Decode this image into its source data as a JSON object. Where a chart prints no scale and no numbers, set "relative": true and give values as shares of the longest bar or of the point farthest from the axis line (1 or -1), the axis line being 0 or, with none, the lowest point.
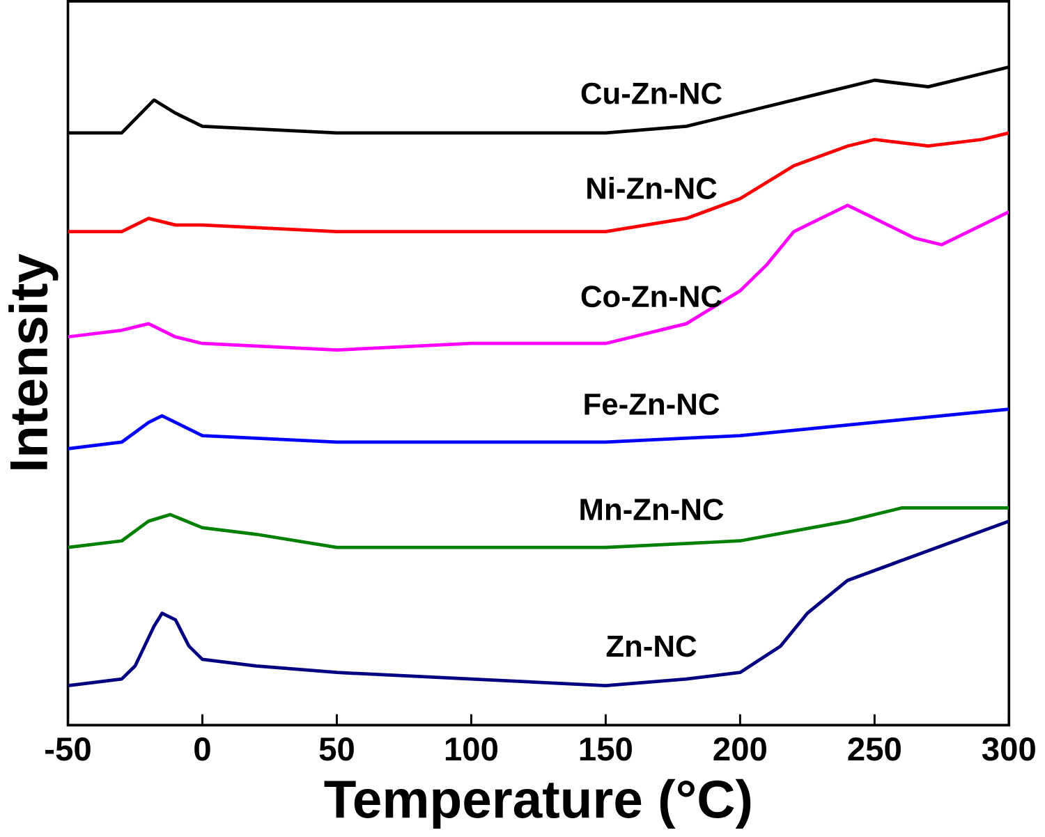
{
  "chart_data": {
    "type": "line",
    "relative": true,
    "xlabel": "Temperature (°C)",
    "ylabel": "Intensity",
    "xlim": [
      -50,
      300
    ],
    "xticks": [
      -50,
      0,
      50,
      100,
      150,
      200,
      250,
      300
    ],
    "tick_labels": "x",
    "grid": false,
    "marker": "none",
    "line_style": "solid",
    "series": [
      {
        "name": "Cu-Zn-NC",
        "color": "#000000",
        "x": [
          -50,
          -30,
          -18,
          -10,
          0,
          50,
          100,
          150,
          180,
          210,
          230,
          250,
          270,
          290,
          300
        ],
        "values": [
          0.9,
          0.9,
          0.95,
          0.93,
          0.91,
          0.9,
          0.9,
          0.9,
          0.91,
          0.94,
          0.96,
          0.98,
          0.97,
          0.99,
          1.0
        ]
      },
      {
        "name": "Ni-Zn-NC",
        "color": "#ff0000",
        "x": [
          -50,
          -30,
          -20,
          -10,
          0,
          50,
          100,
          150,
          180,
          200,
          220,
          240,
          250,
          270,
          290,
          300
        ],
        "values": [
          0.75,
          0.75,
          0.77,
          0.76,
          0.76,
          0.75,
          0.75,
          0.75,
          0.77,
          0.8,
          0.85,
          0.88,
          0.89,
          0.88,
          0.89,
          0.9
        ]
      },
      {
        "name": "Co-Zn-NC",
        "color": "#ff00ff",
        "x": [
          -50,
          -30,
          -20,
          -10,
          0,
          50,
          100,
          150,
          180,
          200,
          210,
          220,
          230,
          240,
          250,
          265,
          275,
          290,
          300
        ],
        "values": [
          0.59,
          0.6,
          0.61,
          0.59,
          0.58,
          0.57,
          0.58,
          0.58,
          0.61,
          0.66,
          0.7,
          0.75,
          0.77,
          0.79,
          0.77,
          0.74,
          0.73,
          0.76,
          0.78
        ]
      },
      {
        "name": "Fe-Zn-NC",
        "color": "#0000ff",
        "x": [
          -50,
          -30,
          -20,
          -15,
          -5,
          0,
          50,
          100,
          150,
          200,
          250,
          300
        ],
        "values": [
          0.42,
          0.43,
          0.46,
          0.47,
          0.45,
          0.44,
          0.43,
          0.43,
          0.43,
          0.44,
          0.46,
          0.48
        ]
      },
      {
        "name": "Mn-Zn-NC",
        "color": "#008000",
        "x": [
          -50,
          -30,
          -20,
          -12,
          0,
          20,
          50,
          100,
          150,
          200,
          240,
          260,
          300
        ],
        "values": [
          0.27,
          0.28,
          0.31,
          0.32,
          0.3,
          0.29,
          0.27,
          0.27,
          0.27,
          0.28,
          0.31,
          0.33,
          0.33
        ]
      },
      {
        "name": "Zn-NC",
        "color": "#000080",
        "x": [
          -50,
          -30,
          -25,
          -18,
          -15,
          -10,
          -5,
          0,
          20,
          50,
          100,
          150,
          180,
          200,
          215,
          225,
          240,
          260,
          280,
          300
        ],
        "values": [
          0.06,
          0.07,
          0.09,
          0.15,
          0.17,
          0.16,
          0.12,
          0.1,
          0.09,
          0.08,
          0.07,
          0.06,
          0.07,
          0.08,
          0.12,
          0.17,
          0.22,
          0.25,
          0.28,
          0.31
        ]
      }
    ]
  }
}
